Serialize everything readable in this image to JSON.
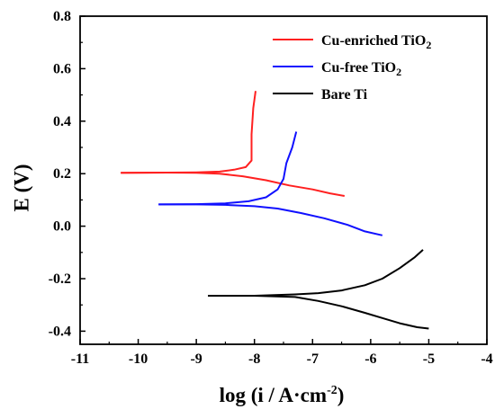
{
  "chart_data": {
    "type": "line",
    "xlabel": "log (i / A·cm",
    "xlabel_superscript": "-2",
    "xlabel_suffix": ")",
    "ylabel": "E (V)",
    "xlim": [
      -11,
      -4
    ],
    "ylim": [
      -0.45,
      0.8
    ],
    "xticks": [
      -11,
      -10,
      -9,
      -8,
      -7,
      -6,
      -5,
      -4
    ],
    "yticks": [
      -0.4,
      -0.2,
      0.0,
      0.2,
      0.4,
      0.6,
      0.8
    ],
    "xtick_labels": [
      "-11",
      "-10",
      "-9",
      "-8",
      "-7",
      "-6",
      "-5",
      "-4"
    ],
    "ytick_labels": [
      "-0.4",
      "-0.2",
      "0.0",
      "0.2",
      "0.4",
      "0.6",
      "0.8"
    ],
    "grid": false,
    "legend_position": "top-right",
    "series": [
      {
        "name": "Cu-enriched TiO",
        "name_subscript": "2",
        "color": "#ff2020",
        "cathodic": [
          [
            -10.3,
            0.203
          ],
          [
            -9.5,
            0.204
          ],
          [
            -9.0,
            0.203
          ],
          [
            -8.6,
            0.2
          ],
          [
            -8.2,
            0.19
          ],
          [
            -7.8,
            0.175
          ],
          [
            -7.4,
            0.155
          ],
          [
            -7.0,
            0.14
          ],
          [
            -6.7,
            0.125
          ],
          [
            -6.45,
            0.115
          ]
        ],
        "anodic": [
          [
            -10.3,
            0.203
          ],
          [
            -9.5,
            0.204
          ],
          [
            -9.0,
            0.205
          ],
          [
            -8.6,
            0.208
          ],
          [
            -8.35,
            0.215
          ],
          [
            -8.15,
            0.225
          ],
          [
            -8.05,
            0.25
          ],
          [
            -8.05,
            0.35
          ],
          [
            -8.02,
            0.45
          ],
          [
            -7.98,
            0.515
          ]
        ]
      },
      {
        "name": "Cu-free TiO",
        "name_subscript": "2",
        "color": "#1010ff",
        "cathodic": [
          [
            -9.65,
            0.083
          ],
          [
            -9.0,
            0.083
          ],
          [
            -8.5,
            0.081
          ],
          [
            -8.0,
            0.076
          ],
          [
            -7.6,
            0.067
          ],
          [
            -7.2,
            0.05
          ],
          [
            -6.8,
            0.03
          ],
          [
            -6.4,
            0.005
          ],
          [
            -6.1,
            -0.02
          ],
          [
            -5.8,
            -0.035
          ]
        ],
        "anodic": [
          [
            -9.65,
            0.083
          ],
          [
            -9.0,
            0.084
          ],
          [
            -8.5,
            0.087
          ],
          [
            -8.1,
            0.095
          ],
          [
            -7.8,
            0.11
          ],
          [
            -7.6,
            0.14
          ],
          [
            -7.5,
            0.18
          ],
          [
            -7.45,
            0.24
          ],
          [
            -7.35,
            0.3
          ],
          [
            -7.28,
            0.36
          ]
        ]
      },
      {
        "name": "Bare Ti",
        "name_subscript": "",
        "color": "#000000",
        "cathodic": [
          [
            -8.8,
            -0.265
          ],
          [
            -8.0,
            -0.265
          ],
          [
            -7.3,
            -0.27
          ],
          [
            -6.9,
            -0.285
          ],
          [
            -6.5,
            -0.305
          ],
          [
            -6.1,
            -0.33
          ],
          [
            -5.8,
            -0.35
          ],
          [
            -5.5,
            -0.37
          ],
          [
            -5.2,
            -0.385
          ],
          [
            -5.0,
            -0.39
          ]
        ],
        "anodic": [
          [
            -8.8,
            -0.265
          ],
          [
            -8.0,
            -0.265
          ],
          [
            -7.3,
            -0.26
          ],
          [
            -6.9,
            -0.255
          ],
          [
            -6.5,
            -0.245
          ],
          [
            -6.1,
            -0.225
          ],
          [
            -5.8,
            -0.2
          ],
          [
            -5.5,
            -0.16
          ],
          [
            -5.25,
            -0.12
          ],
          [
            -5.1,
            -0.09
          ]
        ]
      }
    ]
  }
}
